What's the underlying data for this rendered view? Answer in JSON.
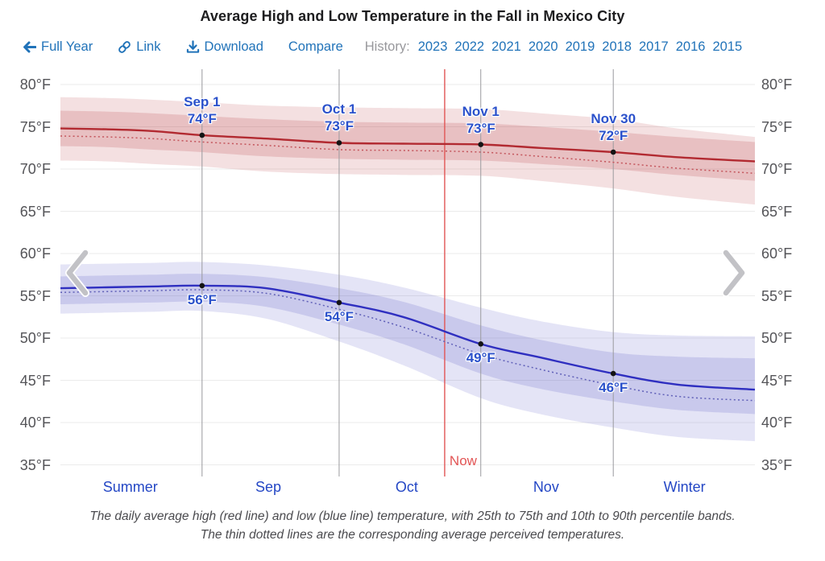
{
  "title": "Average High and Low Temperature in the Fall in Mexico City",
  "toolbar": {
    "full_year": "Full Year",
    "link": "Link",
    "download": "Download",
    "compare": "Compare",
    "history_label": "History:",
    "years": [
      "2023",
      "2022",
      "2021",
      "2020",
      "2019",
      "2018",
      "2017",
      "2016",
      "2015"
    ]
  },
  "colors": {
    "toolbar_link": "#2173b9",
    "history_label": "#98989c",
    "title": "#1d1d1f",
    "axis_label": "#545458",
    "month_label": "#2447c5",
    "point_label": "#2b51cb",
    "grid_line": "#ebebeb",
    "date_line": "#9a9a9e",
    "now_line": "#e15555",
    "high_line": "#b22a31",
    "high_dotted": "#c4555c",
    "low_line": "#2f2fc0",
    "low_dotted": "#6060b8",
    "high_band": "rgba(180,50,56,0.15)",
    "high_band_inner": "rgba(180,50,56,0.18)",
    "low_band": "rgba(72,72,192,0.15)",
    "low_band_inner": "rgba(72,72,192,0.17)",
    "marker_dot": "#141414",
    "chevron": "#c2c2c6"
  },
  "chart_data": {
    "type": "line",
    "title": "Average High and Low Temperature in the Fall in Mexico City",
    "y_unit": "°F",
    "ylim": [
      35,
      80
    ],
    "x_unit": "days from Aug 1",
    "x_domain": [
      0,
      152
    ],
    "grid": true,
    "y_ticks": [
      {
        "value": 80,
        "label": "80°F"
      },
      {
        "value": 75,
        "label": "75°F"
      },
      {
        "value": 70,
        "label": "70°F"
      },
      {
        "value": 65,
        "label": "65°F"
      },
      {
        "value": 60,
        "label": "60°F"
      },
      {
        "value": 55,
        "label": "55°F"
      },
      {
        "value": 50,
        "label": "50°F"
      },
      {
        "value": 45,
        "label": "45°F"
      },
      {
        "value": 40,
        "label": "40°F"
      },
      {
        "value": 35,
        "label": "35°F"
      }
    ],
    "x_axis_labels": [
      {
        "label": "Summer",
        "day": 15.3
      },
      {
        "label": "Sep",
        "day": 45.5
      },
      {
        "label": "Oct",
        "day": 75.8
      },
      {
        "label": "Nov",
        "day": 106.3
      },
      {
        "label": "Winter",
        "day": 136.6
      }
    ],
    "x_days": [
      0,
      10,
      20,
      31,
      45,
      61,
      75,
      92,
      105,
      121,
      135,
      152
    ],
    "lines": [
      {
        "name": "average-high",
        "color": "#b22a31",
        "width": 2.4,
        "dotted": false,
        "values": [
          74.8,
          74.7,
          74.5,
          74.0,
          73.6,
          73.1,
          73.0,
          72.9,
          72.5,
          72.0,
          71.4,
          70.9
        ]
      },
      {
        "name": "perceived-high",
        "color": "#c4555c",
        "width": 1.5,
        "dotted": true,
        "values": [
          73.9,
          73.8,
          73.6,
          73.2,
          72.8,
          72.3,
          72.2,
          72.0,
          71.5,
          70.8,
          70.1,
          69.5
        ]
      },
      {
        "name": "average-low",
        "color": "#2f2fc0",
        "width": 2.4,
        "dotted": false,
        "values": [
          55.9,
          56.0,
          56.1,
          56.2,
          55.9,
          54.2,
          52.5,
          49.3,
          47.7,
          45.8,
          44.5,
          43.9
        ]
      },
      {
        "name": "perceived-low",
        "color": "#6060b8",
        "width": 1.5,
        "dotted": true,
        "values": [
          55.4,
          55.5,
          55.6,
          55.7,
          55.3,
          53.4,
          51.3,
          48.1,
          46.3,
          44.4,
          43.1,
          42.6
        ]
      }
    ],
    "bands": [
      {
        "name": "high-10th-90th",
        "color": "rgba(180,50,56,0.15)",
        "upper": [
          78.5,
          78.4,
          78.2,
          77.9,
          77.5,
          77.3,
          77.2,
          77.1,
          76.6,
          75.9,
          74.8,
          73.8
        ],
        "lower": [
          71.0,
          70.9,
          70.6,
          70.3,
          69.7,
          69.4,
          69.3,
          69.2,
          68.6,
          67.7,
          66.7,
          65.8
        ]
      },
      {
        "name": "high-25th-75th",
        "color": "rgba(180,50,56,0.18)",
        "upper": [
          76.9,
          76.8,
          76.6,
          76.3,
          75.9,
          75.6,
          75.5,
          75.4,
          75.0,
          74.4,
          73.8,
          73.2
        ],
        "lower": [
          72.7,
          72.6,
          72.3,
          72.0,
          71.5,
          71.2,
          71.1,
          71.0,
          70.6,
          70.0,
          69.3,
          68.6
        ]
      },
      {
        "name": "low-10th-90th",
        "color": "rgba(72,72,192,0.15)",
        "upper": [
          58.7,
          58.8,
          58.9,
          59.0,
          58.6,
          57.5,
          56.0,
          53.6,
          52.0,
          50.7,
          50.3,
          50.2
        ],
        "lower": [
          52.9,
          53.0,
          53.1,
          53.2,
          52.3,
          49.6,
          46.8,
          42.9,
          41.0,
          39.4,
          38.3,
          37.8
        ]
      },
      {
        "name": "low-25th-75th",
        "color": "rgba(72,72,192,0.17)",
        "upper": [
          57.3,
          57.4,
          57.5,
          57.6,
          57.2,
          55.9,
          54.3,
          51.5,
          49.8,
          48.3,
          47.8,
          47.6
        ],
        "lower": [
          54.0,
          54.1,
          54.2,
          54.3,
          53.7,
          51.6,
          49.3,
          45.8,
          44.0,
          42.5,
          41.5,
          41.0
        ]
      }
    ],
    "markers": [
      {
        "series": "high",
        "day": 31,
        "value": 74.0,
        "date_label": "Sep 1",
        "temp_label": "74°F"
      },
      {
        "series": "high",
        "day": 61,
        "value": 73.1,
        "date_label": "Oct 1",
        "temp_label": "73°F"
      },
      {
        "series": "high",
        "day": 92,
        "value": 72.9,
        "date_label": "Nov 1",
        "temp_label": "73°F"
      },
      {
        "series": "high",
        "day": 121,
        "value": 72.0,
        "date_label": "Nov 30",
        "temp_label": "72°F"
      },
      {
        "series": "low",
        "day": 31,
        "value": 56.2,
        "temp_label": "56°F"
      },
      {
        "series": "low",
        "day": 61,
        "value": 54.2,
        "temp_label": "54°F"
      },
      {
        "series": "low",
        "day": 92,
        "value": 49.3,
        "temp_label": "49°F"
      },
      {
        "series": "low",
        "day": 121,
        "value": 45.8,
        "temp_label": "46°F"
      }
    ],
    "date_lines": [
      {
        "day": 31,
        "label": "Sep 1"
      },
      {
        "day": 61,
        "label": "Oct 1"
      },
      {
        "day": 92,
        "label": "Nov 1"
      },
      {
        "day": 121,
        "label": "Nov 30"
      }
    ],
    "now": {
      "day": 84.1,
      "label": "Now"
    }
  },
  "caption": {
    "line1": "The daily average high (red line) and low (blue line) temperature, with 25th to 75th and 10th to 90th percentile bands.",
    "line2": "The thin dotted lines are the corresponding average perceived temperatures."
  }
}
